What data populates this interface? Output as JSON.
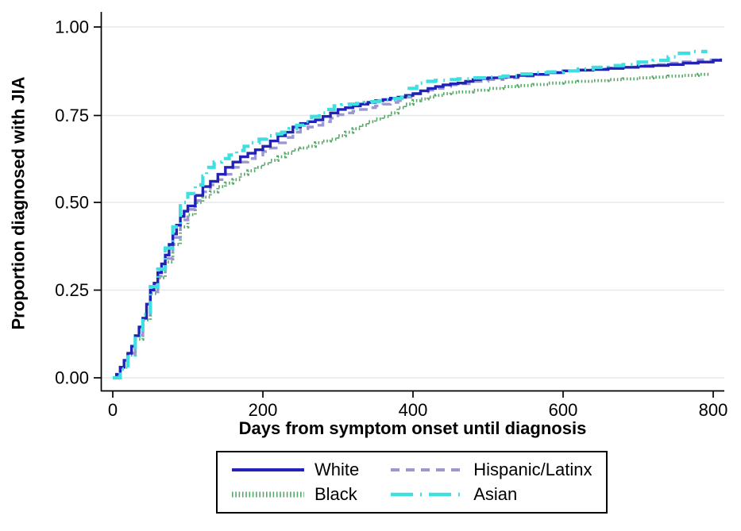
{
  "figure": {
    "background": "#ffffff",
    "gridline_color": "#e5e8ec",
    "axis_color": "#000000"
  },
  "chart_data": {
    "type": "line",
    "subtype": "kaplan-meier-step",
    "title": "",
    "xlabel": "Days from symptom onset until diagnosis",
    "ylabel": "Proportion diagnosed with JIA",
    "xlim": [
      0,
      815
    ],
    "ylim": [
      0,
      1.04
    ],
    "x_ticks": [
      0,
      200,
      400,
      600,
      800
    ],
    "x_tick_labels": [
      "0",
      "200",
      "400",
      "600",
      "800"
    ],
    "y_ticks": [
      0,
      0.25,
      0.5,
      0.75,
      1.0
    ],
    "y_tick_labels": [
      "0.00",
      "0.25",
      "0.50",
      "0.75",
      "1.00"
    ],
    "grid": "horizontal",
    "legend_position": "bottom-center-boxed",
    "series": [
      {
        "name": "White",
        "color": "#2222b8",
        "style": "solid",
        "z": 3,
        "points": [
          [
            0,
            0
          ],
          [
            5,
            0.01
          ],
          [
            10,
            0.03
          ],
          [
            15,
            0.05
          ],
          [
            20,
            0.07
          ],
          [
            25,
            0.09
          ],
          [
            30,
            0.12
          ],
          [
            35,
            0.145
          ],
          [
            40,
            0.17
          ],
          [
            45,
            0.21
          ],
          [
            50,
            0.25
          ],
          [
            55,
            0.27
          ],
          [
            60,
            0.3
          ],
          [
            65,
            0.325
          ],
          [
            70,
            0.35
          ],
          [
            75,
            0.38
          ],
          [
            80,
            0.41
          ],
          [
            85,
            0.435
          ],
          [
            90,
            0.46
          ],
          [
            95,
            0.475
          ],
          [
            100,
            0.49
          ],
          [
            110,
            0.52
          ],
          [
            120,
            0.545
          ],
          [
            130,
            0.56
          ],
          [
            140,
            0.58
          ],
          [
            150,
            0.6
          ],
          [
            160,
            0.615
          ],
          [
            170,
            0.63
          ],
          [
            180,
            0.64
          ],
          [
            190,
            0.65
          ],
          [
            200,
            0.66
          ],
          [
            210,
            0.675
          ],
          [
            220,
            0.69
          ],
          [
            230,
            0.7
          ],
          [
            240,
            0.715
          ],
          [
            250,
            0.725
          ],
          [
            260,
            0.73
          ],
          [
            270,
            0.735
          ],
          [
            280,
            0.745
          ],
          [
            290,
            0.755
          ],
          [
            300,
            0.765
          ],
          [
            310,
            0.77
          ],
          [
            320,
            0.775
          ],
          [
            330,
            0.78
          ],
          [
            340,
            0.785
          ],
          [
            350,
            0.79
          ],
          [
            360,
            0.793
          ],
          [
            370,
            0.797
          ],
          [
            380,
            0.8
          ],
          [
            390,
            0.805
          ],
          [
            400,
            0.81
          ],
          [
            410,
            0.818
          ],
          [
            420,
            0.825
          ],
          [
            430,
            0.83
          ],
          [
            440,
            0.835
          ],
          [
            450,
            0.838
          ],
          [
            460,
            0.84
          ],
          [
            470,
            0.845
          ],
          [
            480,
            0.85
          ],
          [
            490,
            0.853
          ],
          [
            500,
            0.855
          ],
          [
            520,
            0.858
          ],
          [
            540,
            0.862
          ],
          [
            560,
            0.865
          ],
          [
            580,
            0.87
          ],
          [
            600,
            0.875
          ],
          [
            620,
            0.877
          ],
          [
            640,
            0.879
          ],
          [
            660,
            0.882
          ],
          [
            680,
            0.885
          ],
          [
            700,
            0.888
          ],
          [
            720,
            0.89
          ],
          [
            740,
            0.893
          ],
          [
            760,
            0.897
          ],
          [
            780,
            0.9
          ],
          [
            800,
            0.905
          ],
          [
            810,
            0.91
          ]
        ]
      },
      {
        "name": "Hispanic/Latinx",
        "color": "#9a97d1",
        "style": "dashed",
        "z": 2,
        "points": [
          [
            0,
            0
          ],
          [
            10,
            0.03
          ],
          [
            20,
            0.07
          ],
          [
            30,
            0.12
          ],
          [
            40,
            0.17
          ],
          [
            50,
            0.245
          ],
          [
            60,
            0.29
          ],
          [
            70,
            0.34
          ],
          [
            80,
            0.4
          ],
          [
            90,
            0.45
          ],
          [
            100,
            0.48
          ],
          [
            110,
            0.505
          ],
          [
            120,
            0.53
          ],
          [
            130,
            0.55
          ],
          [
            140,
            0.565
          ],
          [
            150,
            0.58
          ],
          [
            160,
            0.6
          ],
          [
            170,
            0.615
          ],
          [
            180,
            0.625
          ],
          [
            190,
            0.635
          ],
          [
            200,
            0.645
          ],
          [
            210,
            0.655
          ],
          [
            220,
            0.67
          ],
          [
            230,
            0.685
          ],
          [
            240,
            0.7
          ],
          [
            250,
            0.71
          ],
          [
            260,
            0.715
          ],
          [
            270,
            0.72
          ],
          [
            280,
            0.73
          ],
          [
            290,
            0.74
          ],
          [
            300,
            0.75
          ],
          [
            310,
            0.755
          ],
          [
            320,
            0.76
          ],
          [
            330,
            0.765
          ],
          [
            340,
            0.77
          ],
          [
            350,
            0.775
          ],
          [
            360,
            0.78
          ],
          [
            370,
            0.785
          ],
          [
            380,
            0.79
          ],
          [
            390,
            0.8
          ],
          [
            400,
            0.81
          ],
          [
            410,
            0.815
          ],
          [
            420,
            0.82
          ],
          [
            430,
            0.825
          ],
          [
            440,
            0.83
          ],
          [
            450,
            0.835
          ],
          [
            460,
            0.838
          ],
          [
            480,
            0.845
          ],
          [
            500,
            0.85
          ],
          [
            520,
            0.855
          ],
          [
            540,
            0.86
          ],
          [
            560,
            0.865
          ],
          [
            580,
            0.87
          ],
          [
            600,
            0.875
          ],
          [
            620,
            0.878
          ],
          [
            640,
            0.88
          ],
          [
            660,
            0.883
          ],
          [
            680,
            0.886
          ],
          [
            700,
            0.89
          ],
          [
            720,
            0.893
          ],
          [
            740,
            0.897
          ],
          [
            760,
            0.901
          ],
          [
            780,
            0.906
          ],
          [
            805,
            0.91
          ]
        ]
      },
      {
        "name": "Black",
        "color": "#57a768",
        "style": "dotted",
        "z": 1,
        "points": [
          [
            0,
            0
          ],
          [
            10,
            0.03
          ],
          [
            20,
            0.065
          ],
          [
            30,
            0.11
          ],
          [
            40,
            0.165
          ],
          [
            50,
            0.24
          ],
          [
            60,
            0.285
          ],
          [
            70,
            0.33
          ],
          [
            80,
            0.38
          ],
          [
            90,
            0.43
          ],
          [
            100,
            0.465
          ],
          [
            110,
            0.5
          ],
          [
            120,
            0.515
          ],
          [
            130,
            0.53
          ],
          [
            140,
            0.545
          ],
          [
            150,
            0.555
          ],
          [
            160,
            0.565
          ],
          [
            170,
            0.58
          ],
          [
            180,
            0.59
          ],
          [
            190,
            0.6
          ],
          [
            200,
            0.61
          ],
          [
            210,
            0.62
          ],
          [
            220,
            0.63
          ],
          [
            230,
            0.64
          ],
          [
            240,
            0.65
          ],
          [
            250,
            0.655
          ],
          [
            260,
            0.66
          ],
          [
            270,
            0.67
          ],
          [
            280,
            0.675
          ],
          [
            290,
            0.68
          ],
          [
            300,
            0.69
          ],
          [
            310,
            0.7
          ],
          [
            320,
            0.71
          ],
          [
            330,
            0.72
          ],
          [
            340,
            0.73
          ],
          [
            350,
            0.738
          ],
          [
            360,
            0.745
          ],
          [
            370,
            0.755
          ],
          [
            380,
            0.77
          ],
          [
            390,
            0.78
          ],
          [
            400,
            0.79
          ],
          [
            410,
            0.795
          ],
          [
            420,
            0.8
          ],
          [
            430,
            0.805
          ],
          [
            440,
            0.81
          ],
          [
            450,
            0.813
          ],
          [
            460,
            0.815
          ],
          [
            480,
            0.82
          ],
          [
            500,
            0.825
          ],
          [
            520,
            0.83
          ],
          [
            540,
            0.833
          ],
          [
            560,
            0.836
          ],
          [
            580,
            0.84
          ],
          [
            600,
            0.843
          ],
          [
            620,
            0.845
          ],
          [
            640,
            0.847
          ],
          [
            660,
            0.85
          ],
          [
            680,
            0.852
          ],
          [
            700,
            0.855
          ],
          [
            720,
            0.857
          ],
          [
            740,
            0.86
          ],
          [
            760,
            0.862
          ],
          [
            780,
            0.865
          ],
          [
            795,
            0.868
          ]
        ]
      },
      {
        "name": "Asian",
        "color": "#3fdfe1",
        "style": "dash-dot",
        "z": 4,
        "points": [
          [
            0,
            0
          ],
          [
            10,
            0.025
          ],
          [
            20,
            0.06
          ],
          [
            30,
            0.12
          ],
          [
            40,
            0.18
          ],
          [
            50,
            0.26
          ],
          [
            60,
            0.31
          ],
          [
            70,
            0.37
          ],
          [
            80,
            0.43
          ],
          [
            90,
            0.5
          ],
          [
            100,
            0.525
          ],
          [
            110,
            0.55
          ],
          [
            120,
            0.575
          ],
          [
            125,
            0.6
          ],
          [
            135,
            0.615
          ],
          [
            145,
            0.625
          ],
          [
            155,
            0.635
          ],
          [
            165,
            0.648
          ],
          [
            175,
            0.66
          ],
          [
            185,
            0.67
          ],
          [
            195,
            0.68
          ],
          [
            205,
            0.69
          ],
          [
            215,
            0.695
          ],
          [
            225,
            0.7
          ],
          [
            235,
            0.71
          ],
          [
            245,
            0.72
          ],
          [
            255,
            0.73
          ],
          [
            265,
            0.745
          ],
          [
            275,
            0.755
          ],
          [
            285,
            0.765
          ],
          [
            295,
            0.775
          ],
          [
            305,
            0.778
          ],
          [
            315,
            0.78
          ],
          [
            325,
            0.782
          ],
          [
            335,
            0.785
          ],
          [
            345,
            0.787
          ],
          [
            355,
            0.79
          ],
          [
            365,
            0.792
          ],
          [
            375,
            0.796
          ],
          [
            385,
            0.8
          ],
          [
            395,
            0.825
          ],
          [
            405,
            0.84
          ],
          [
            415,
            0.845
          ],
          [
            430,
            0.848
          ],
          [
            445,
            0.85
          ],
          [
            460,
            0.852
          ],
          [
            480,
            0.855
          ],
          [
            500,
            0.857
          ],
          [
            520,
            0.86
          ],
          [
            540,
            0.866
          ],
          [
            560,
            0.87
          ],
          [
            580,
            0.872
          ],
          [
            600,
            0.875
          ],
          [
            620,
            0.88
          ],
          [
            640,
            0.885
          ],
          [
            660,
            0.89
          ],
          [
            680,
            0.893
          ],
          [
            700,
            0.9
          ],
          [
            720,
            0.905
          ],
          [
            740,
            0.915
          ],
          [
            755,
            0.925
          ],
          [
            770,
            0.93
          ],
          [
            790,
            0.935
          ]
        ]
      }
    ]
  }
}
